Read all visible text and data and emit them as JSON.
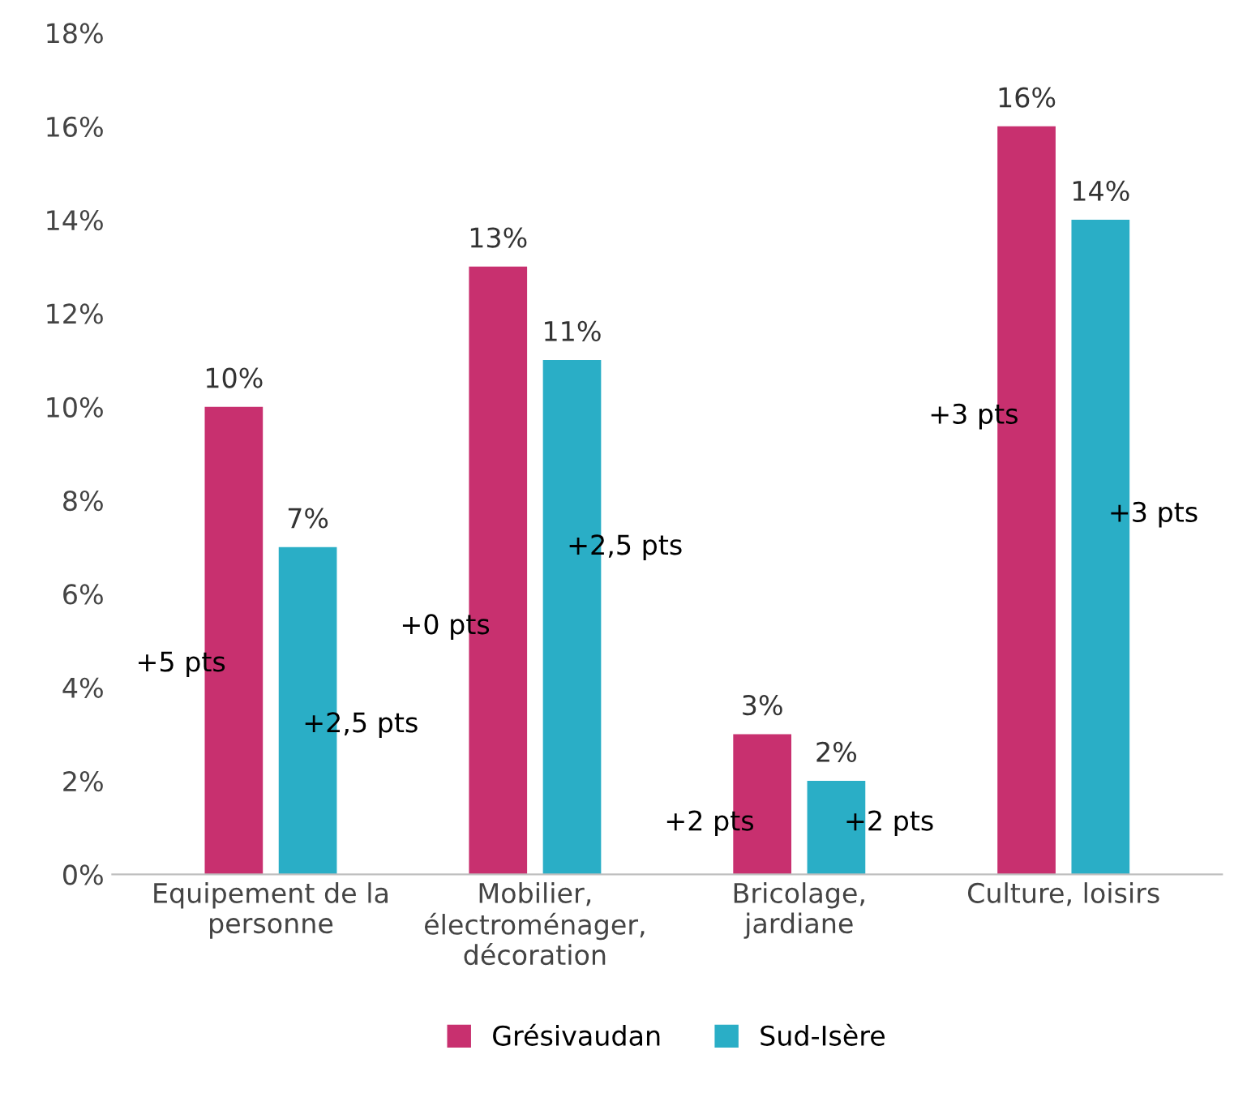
{
  "chart_data": {
    "type": "bar",
    "categories": [
      "Equipement de la\npersonne",
      "Mobilier,\nélectroménager,\ndécoration",
      "Bricolage,\njardiane",
      "Culture, loisirs"
    ],
    "series": [
      {
        "name": "Grésivaudan",
        "color": "#c8306f",
        "values": [
          10,
          13,
          3,
          16
        ],
        "value_labels": [
          "10%",
          "13%",
          "3%",
          "16%"
        ]
      },
      {
        "name": "Sud-Isère",
        "color": "#2aaec6",
        "values": [
          7,
          11,
          2,
          14
        ],
        "value_labels": [
          "7%",
          "11%",
          "2%",
          "14%"
        ]
      }
    ],
    "ylim": [
      0,
      18
    ],
    "yticks": [
      {
        "value": 0,
        "label": "0%"
      },
      {
        "value": 2,
        "label": "2%"
      },
      {
        "value": 4,
        "label": "4%"
      },
      {
        "value": 6,
        "label": "6%"
      },
      {
        "value": 8,
        "label": "8%"
      },
      {
        "value": 10,
        "label": "10%"
      },
      {
        "value": 12,
        "label": "12%"
      },
      {
        "value": 14,
        "label": "14%"
      },
      {
        "value": 16,
        "label": "16%"
      },
      {
        "value": 18,
        "label": "18%"
      }
    ],
    "annotations": [
      {
        "text": "+5 pts",
        "x": "Equipement de la\npersonne",
        "y": 4.5
      },
      {
        "text": "+2,5 pts",
        "x": "Equipement de la\npersonne",
        "y": 3.2
      },
      {
        "text": "+0 pts",
        "x": "Mobilier,\nélectroménager,\ndécoration",
        "y": 5.3
      },
      {
        "text": "+2,5 pts",
        "x": "Mobilier,\nélectroménager,\ndécoration",
        "y": 7.0
      },
      {
        "text": "+2 pts",
        "x": "Bricolage,\njardiane",
        "y": 1.1
      },
      {
        "text": "+2 pts",
        "x": "Bricolage,\njardiane",
        "y": 1.1
      },
      {
        "text": "+3 pts",
        "x": "Culture, loisirs",
        "y": 9.8
      },
      {
        "text": "+3 pts",
        "x": "Culture, loisirs",
        "y": 7.7
      }
    ],
    "grid": false,
    "legend": "bottom"
  }
}
